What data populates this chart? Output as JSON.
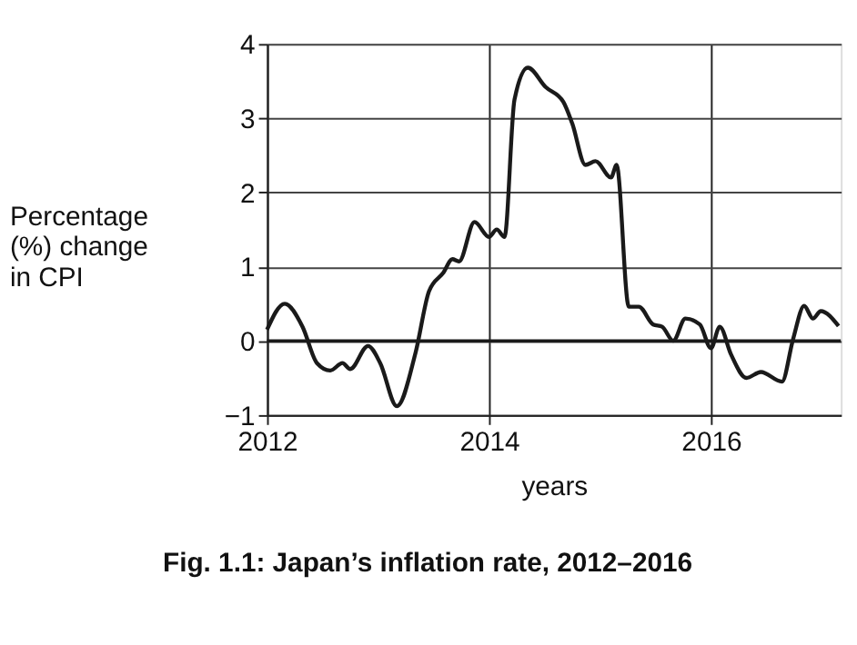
{
  "chart_data": {
    "type": "line",
    "title": "Fig. 1.1: Japan’s inflation rate, 2012–2016",
    "xlabel": "years",
    "ylabel": "Percentage (%) change in CPI",
    "x": [
      2012.0,
      2012.16,
      2012.32,
      2012.45,
      2012.57,
      2012.68,
      2012.75,
      2012.91,
      2013.02,
      2013.17,
      2013.34,
      2013.46,
      2013.59,
      2013.67,
      2013.73,
      2013.87,
      2014.0,
      2014.07,
      2014.14,
      2014.23,
      2014.35,
      2014.51,
      2014.67,
      2014.75,
      2014.87,
      2014.96,
      2015.1,
      2015.15,
      2015.26,
      2015.35,
      2015.48,
      2015.56,
      2015.66,
      2015.77,
      2015.9,
      2016.0,
      2016.08,
      2016.18,
      2016.32,
      2016.45,
      2016.64,
      2016.74,
      2016.84,
      2016.92,
      2016.99,
      2017.15
    ],
    "series": [
      {
        "color": "#1a1a1a",
        "values": [
          0.15,
          0.5,
          0.19,
          -0.3,
          -0.4,
          -0.3,
          -0.38,
          -0.07,
          -0.3,
          -0.88,
          -0.15,
          0.67,
          0.92,
          1.1,
          1.07,
          1.6,
          1.4,
          1.5,
          1.4,
          3.25,
          3.68,
          3.42,
          3.22,
          2.93,
          2.37,
          2.42,
          2.2,
          2.37,
          0.46,
          0.46,
          0.22,
          0.19,
          0.0,
          0.3,
          0.22,
          -0.1,
          0.19,
          -0.18,
          -0.5,
          -0.42,
          -0.55,
          0.02,
          0.47,
          0.3,
          0.4,
          0.2
        ]
      }
    ],
    "xlim": [
      2012,
      2017.17
    ],
    "xticks": [
      2012,
      2014,
      2016
    ],
    "ylim": [
      -1,
      4
    ],
    "yticks": [
      -1,
      0,
      1,
      2,
      3,
      4
    ],
    "grid": true,
    "line_style": "solid",
    "marker": "none",
    "ref_lines": [
      {
        "axis": "y",
        "value": 0,
        "color": "#1a1a1a"
      }
    ]
  }
}
